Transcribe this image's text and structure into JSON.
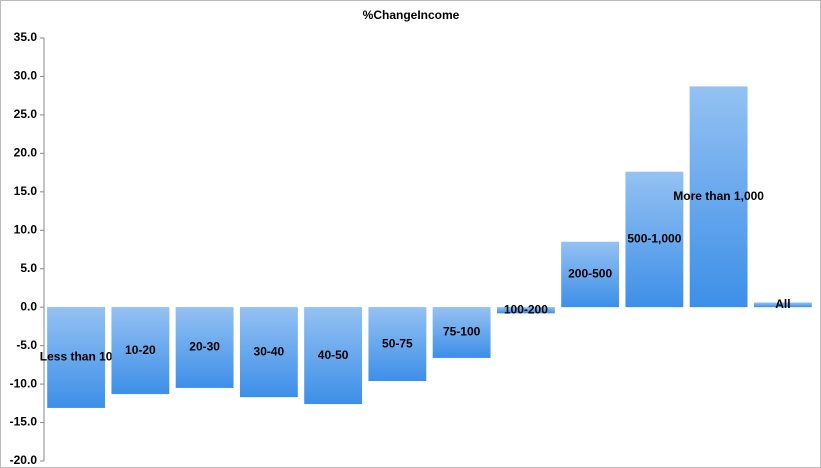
{
  "chart_data": {
    "type": "bar",
    "title": "%ChangeIncome",
    "categories": [
      "Less than 10",
      "10-20",
      "20-30",
      "30-40",
      "40-50",
      "50-75",
      "75-100",
      "100-200",
      "200-500",
      "500-1,000",
      "More than 1,000",
      "All"
    ],
    "values": [
      -13.1,
      -11.3,
      -10.5,
      -11.7,
      -12.6,
      -9.6,
      -6.6,
      -0.8,
      8.5,
      17.6,
      28.7,
      0.6
    ],
    "color": "#3d8fe8",
    "ylim": [
      -20,
      35
    ],
    "yticks": [
      {
        "value": -20,
        "label": "-20.0"
      },
      {
        "value": -15,
        "label": "-15.0"
      },
      {
        "value": -10,
        "label": "-10.0"
      },
      {
        "value": -5,
        "label": "-5.0"
      },
      {
        "value": 0,
        "label": "0.0"
      },
      {
        "value": 5,
        "label": "5.0"
      },
      {
        "value": 10,
        "label": "10.0"
      },
      {
        "value": 15,
        "label": "15.0"
      },
      {
        "value": 20,
        "label": "20.0"
      },
      {
        "value": 25,
        "label": "25.0"
      },
      {
        "value": 30,
        "label": "30.0"
      },
      {
        "value": 35,
        "label": "35.0"
      }
    ]
  }
}
